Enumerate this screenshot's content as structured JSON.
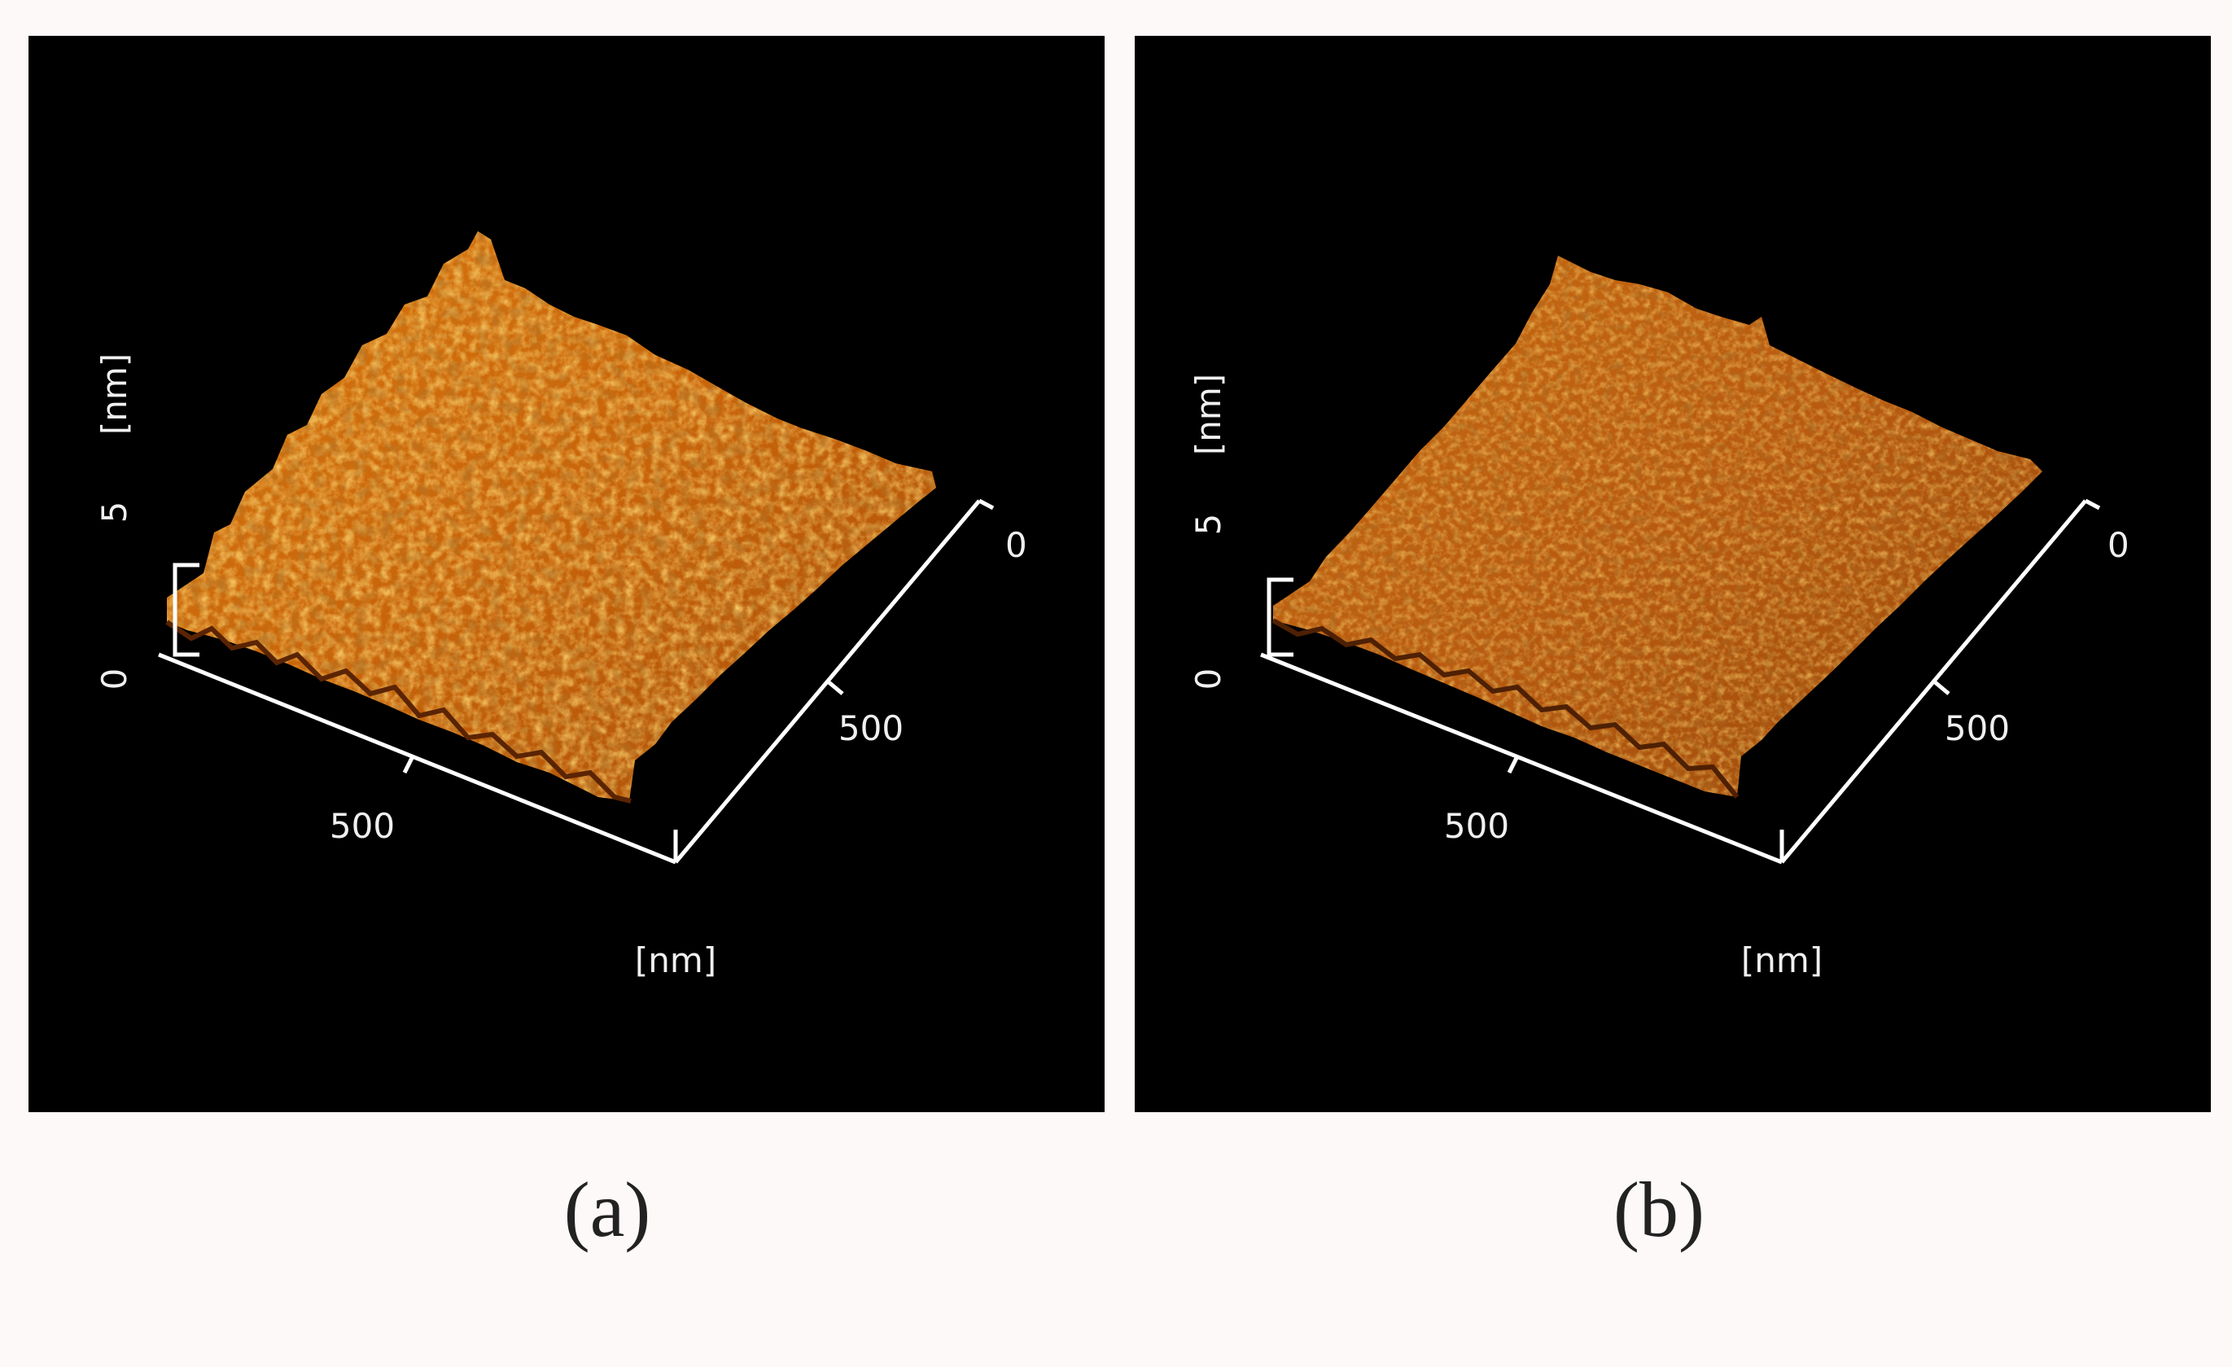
{
  "figure": {
    "panels": [
      {
        "id": "a",
        "caption": "(a)",
        "z_axis": {
          "ticks": [
            "0",
            "5"
          ],
          "unit": "[nm]"
        },
        "x_axis": {
          "tick": "500",
          "unit": "[nm]"
        },
        "y_axis": {
          "ticks": [
            "0",
            "500"
          ]
        },
        "surface_color": "#c8640a",
        "roughness": "higher"
      },
      {
        "id": "b",
        "caption": "(b)",
        "z_axis": {
          "ticks": [
            "0",
            "5"
          ],
          "unit": "[nm]"
        },
        "x_axis": {
          "tick": "500",
          "unit": "[nm]"
        },
        "y_axis": {
          "ticks": [
            "0",
            "500"
          ]
        },
        "surface_color": "#b85a10",
        "roughness": "lower"
      }
    ],
    "colors": {
      "panel_background": "#000000",
      "page_background": "#fdf9f9",
      "axis_color": "#ffffff",
      "surface_highlight": "#f0a030",
      "surface_shadow": "#7a3208"
    }
  }
}
